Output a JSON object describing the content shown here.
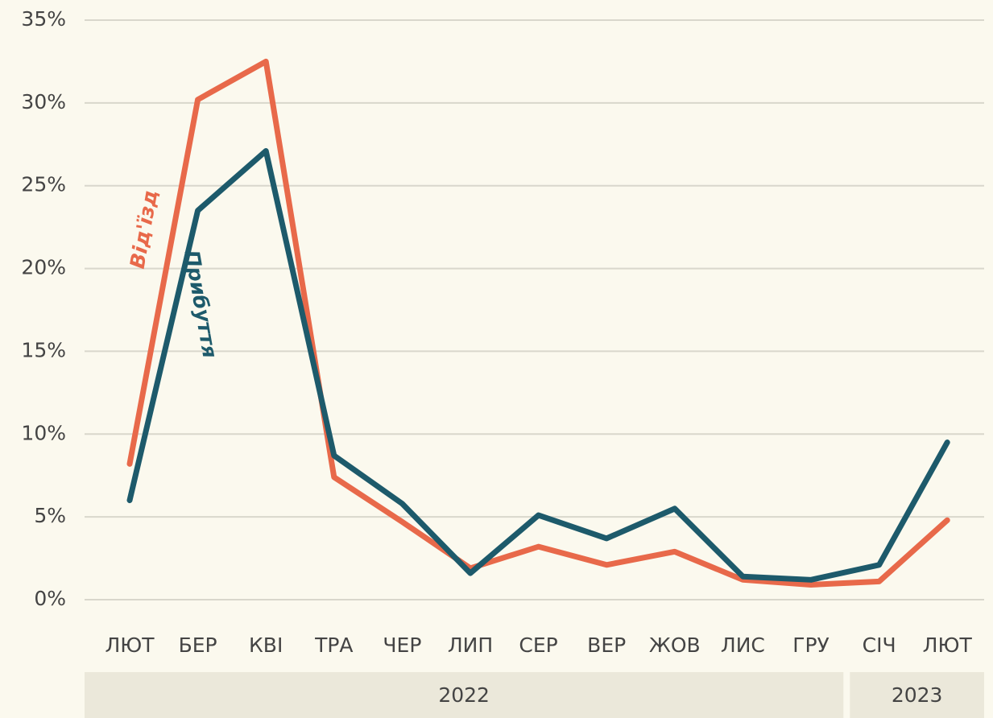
{
  "chart_data": {
    "type": "line",
    "categories": [
      "ЛЮТ",
      "БЕР",
      "КВІ",
      "ТРА",
      "ЧЕР",
      "ЛИП",
      "СЕР",
      "ВЕР",
      "ЖОВ",
      "ЛИС",
      "ГРУ",
      "СІЧ",
      "ЛЮТ"
    ],
    "years": [
      {
        "label": "2022",
        "count": 11
      },
      {
        "label": "2023",
        "count": 2
      }
    ],
    "series": [
      {
        "name": "Від'їзд",
        "color": "#e8694a",
        "values": [
          8.2,
          30.2,
          32.5,
          7.4,
          4.7,
          1.9,
          3.2,
          2.1,
          2.9,
          1.2,
          0.9,
          1.1,
          4.8
        ]
      },
      {
        "name": "Прибуття",
        "color": "#1d5a6b",
        "values": [
          6.0,
          23.5,
          27.1,
          8.7,
          5.8,
          1.6,
          5.1,
          3.7,
          5.5,
          1.4,
          1.2,
          2.1,
          9.5
        ]
      }
    ],
    "ylim": [
      0,
      35
    ],
    "yticks": [
      {
        "value": 0,
        "label": "0%"
      },
      {
        "value": 5,
        "label": "5%"
      },
      {
        "value": 10,
        "label": "10%"
      },
      {
        "value": 15,
        "label": "15%"
      },
      {
        "value": 20,
        "label": "20%"
      },
      {
        "value": 25,
        "label": "25%"
      },
      {
        "value": 30,
        "label": "30%"
      },
      {
        "value": 35,
        "label": "35%"
      }
    ],
    "grid": true
  }
}
